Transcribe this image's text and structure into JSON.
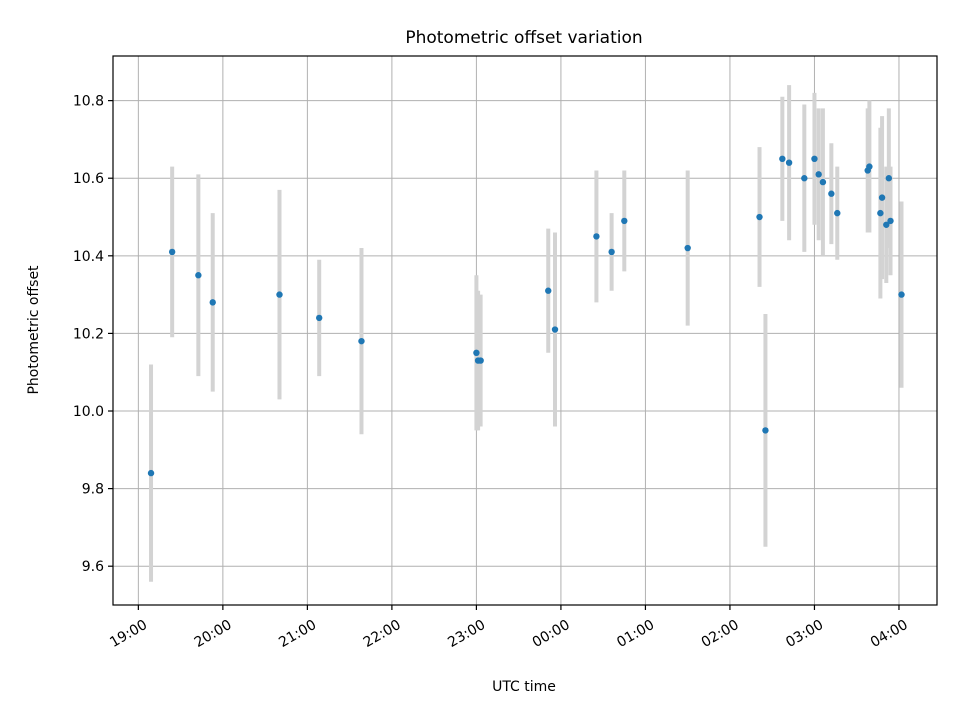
{
  "chart_data": {
    "type": "scatter",
    "title": "Photometric offset variation",
    "xlabel": "UTC time",
    "ylabel": "Photometric offset",
    "x_unit": "hours after 19:00 UTC",
    "xlim": [
      -0.3,
      9.45
    ],
    "ylim": [
      9.5,
      10.915
    ],
    "x_ticks": [
      {
        "value": 0,
        "label": "19:00"
      },
      {
        "value": 1,
        "label": "20:00"
      },
      {
        "value": 2,
        "label": "21:00"
      },
      {
        "value": 3,
        "label": "22:00"
      },
      {
        "value": 4,
        "label": "23:00"
      },
      {
        "value": 5,
        "label": "00:00"
      },
      {
        "value": 6,
        "label": "01:00"
      },
      {
        "value": 7,
        "label": "02:00"
      },
      {
        "value": 8,
        "label": "03:00"
      },
      {
        "value": 9,
        "label": "04:00"
      }
    ],
    "y_ticks": [
      {
        "value": 9.6,
        "label": "9.6"
      },
      {
        "value": 9.8,
        "label": "9.8"
      },
      {
        "value": 10.0,
        "label": "10.0"
      },
      {
        "value": 10.2,
        "label": "10.2"
      },
      {
        "value": 10.4,
        "label": "10.4"
      },
      {
        "value": 10.6,
        "label": "10.6"
      },
      {
        "value": 10.8,
        "label": "10.8"
      }
    ],
    "grid": true,
    "colors": {
      "point": "#1f77b4",
      "errorbar": "#d3d3d3"
    },
    "points": [
      {
        "x": 0.15,
        "y": 9.84,
        "err": 0.28
      },
      {
        "x": 0.4,
        "y": 10.41,
        "err": 0.22
      },
      {
        "x": 0.71,
        "y": 10.35,
        "err": 0.26
      },
      {
        "x": 0.88,
        "y": 10.28,
        "err": 0.23
      },
      {
        "x": 1.67,
        "y": 10.3,
        "err": 0.27
      },
      {
        "x": 2.14,
        "y": 10.24,
        "err": 0.15
      },
      {
        "x": 2.64,
        "y": 10.18,
        "err": 0.24
      },
      {
        "x": 4.0,
        "y": 10.15,
        "err": 0.2
      },
      {
        "x": 4.02,
        "y": 10.13,
        "err": 0.18
      },
      {
        "x": 4.05,
        "y": 10.13,
        "err": 0.17
      },
      {
        "x": 4.85,
        "y": 10.31,
        "err": 0.16
      },
      {
        "x": 4.93,
        "y": 10.21,
        "err": 0.25
      },
      {
        "x": 5.42,
        "y": 10.45,
        "err": 0.17
      },
      {
        "x": 5.6,
        "y": 10.41,
        "err": 0.1
      },
      {
        "x": 5.75,
        "y": 10.49,
        "err": 0.13
      },
      {
        "x": 6.5,
        "y": 10.42,
        "err": 0.2
      },
      {
        "x": 7.35,
        "y": 10.5,
        "err": 0.18
      },
      {
        "x": 7.42,
        "y": 9.95,
        "err": 0.3
      },
      {
        "x": 7.62,
        "y": 10.65,
        "err": 0.16
      },
      {
        "x": 7.7,
        "y": 10.64,
        "err": 0.2
      },
      {
        "x": 7.88,
        "y": 10.6,
        "err": 0.19
      },
      {
        "x": 8.0,
        "y": 10.65,
        "err": 0.17
      },
      {
        "x": 8.05,
        "y": 10.61,
        "err": 0.17
      },
      {
        "x": 8.1,
        "y": 10.59,
        "err": 0.19
      },
      {
        "x": 8.2,
        "y": 10.56,
        "err": 0.13
      },
      {
        "x": 8.27,
        "y": 10.51,
        "err": 0.12
      },
      {
        "x": 8.63,
        "y": 10.62,
        "err": 0.16
      },
      {
        "x": 8.65,
        "y": 10.63,
        "err": 0.17
      },
      {
        "x": 8.78,
        "y": 10.51,
        "err": 0.22
      },
      {
        "x": 8.8,
        "y": 10.55,
        "err": 0.21
      },
      {
        "x": 8.85,
        "y": 10.48,
        "err": 0.15
      },
      {
        "x": 8.88,
        "y": 10.6,
        "err": 0.18
      },
      {
        "x": 8.9,
        "y": 10.49,
        "err": 0.14
      },
      {
        "x": 9.03,
        "y": 10.3,
        "err": 0.24
      }
    ]
  }
}
